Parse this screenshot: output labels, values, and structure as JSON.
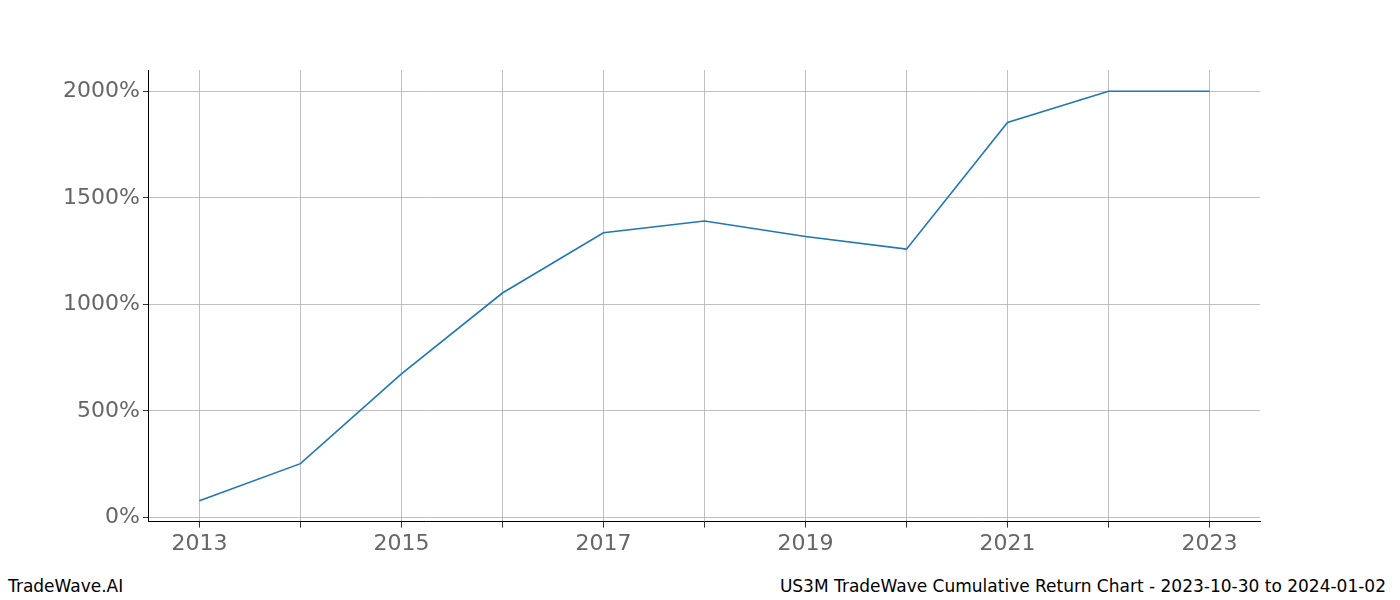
{
  "chart_data": {
    "type": "line",
    "categories": [
      "2013",
      null,
      "2015",
      null,
      "2017",
      null,
      "2019",
      null,
      "2021",
      null,
      "2023"
    ],
    "values": [
      78,
      252,
      673,
      1053,
      1336,
      1391,
      1318,
      1259,
      1854,
      2000,
      2000
    ],
    "color": "#1f77b4",
    "ylim": [
      -20,
      2100
    ],
    "yticks": [
      {
        "value": 0,
        "label": "0%"
      },
      {
        "value": 500,
        "label": "500%"
      },
      {
        "value": 1000,
        "label": "1000%"
      },
      {
        "value": 1500,
        "label": "1500%"
      },
      {
        "value": 2000,
        "label": "2000%"
      }
    ],
    "grid": true,
    "annotations": [
      "TradeWave.AI",
      "US3M TradeWave Cumulative Return Chart - 2023-10-30 to 2024-01-02"
    ]
  }
}
